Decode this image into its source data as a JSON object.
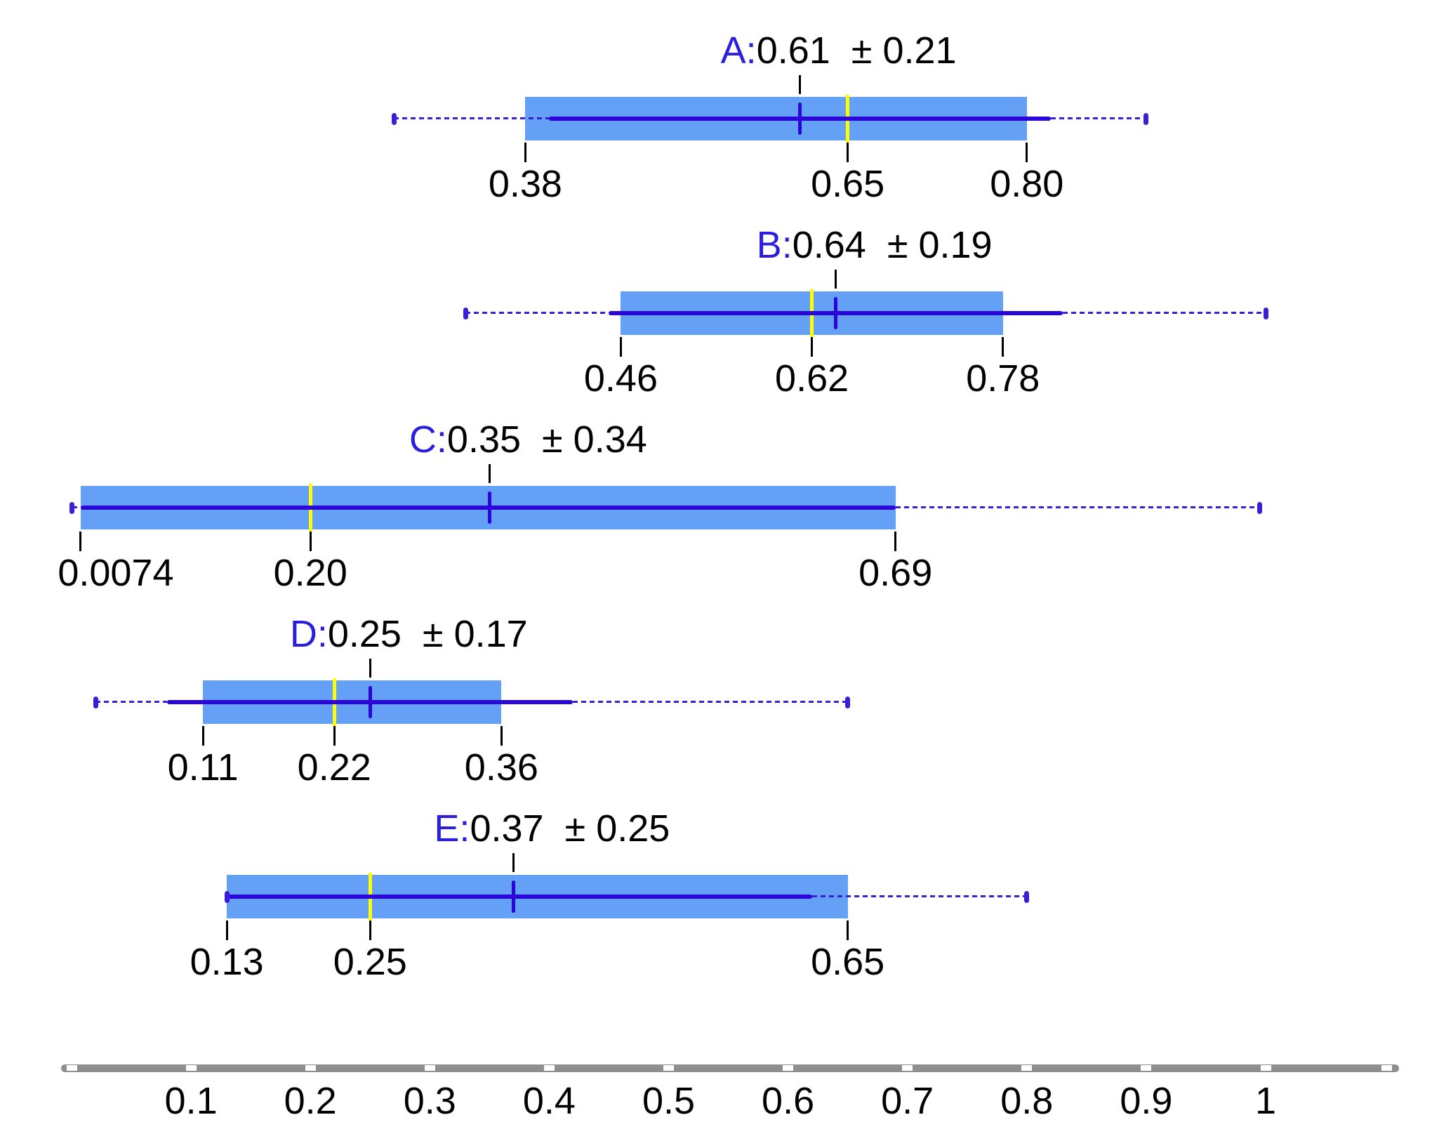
{
  "chart_data": {
    "type": "boxplot",
    "orientation": "horizontal",
    "title": "",
    "legend": null,
    "grid": false,
    "series": [
      {
        "name": "A",
        "label_prefix": "A:",
        "mean_label": "0.61",
        "pm_label": "± 0.21",
        "mean": 0.61,
        "std": 0.21,
        "median": 0.65,
        "box_low": 0.38,
        "box_high": 0.8,
        "solid_low": 0.4,
        "solid_high": 0.82,
        "whisker_low": 0.27,
        "whisker_high": 0.9,
        "value_labels": [
          {
            "text": "0.38",
            "v": 0.38
          },
          {
            "text": "0.65",
            "v": 0.65
          },
          {
            "text": "0.80",
            "v": 0.8
          }
        ]
      },
      {
        "name": "B",
        "label_prefix": "B:",
        "mean_label": "0.64",
        "pm_label": "± 0.19",
        "mean": 0.64,
        "std": 0.19,
        "median": 0.62,
        "box_low": 0.46,
        "box_high": 0.78,
        "solid_low": 0.45,
        "solid_high": 0.83,
        "whisker_low": 0.33,
        "whisker_high": 1.0,
        "value_labels": [
          {
            "text": "0.46",
            "v": 0.46
          },
          {
            "text": "0.62",
            "v": 0.62
          },
          {
            "text": "0.78",
            "v": 0.78
          }
        ]
      },
      {
        "name": "C",
        "label_prefix": "C:",
        "mean_label": "0.35",
        "pm_label": "± 0.34",
        "mean": 0.35,
        "std": 0.34,
        "median": 0.2,
        "box_low": 0.0074,
        "box_high": 0.69,
        "solid_low": 0.0074,
        "solid_high": 0.69,
        "whisker_low": 0.0005,
        "whisker_high": 0.995,
        "value_labels": [
          {
            "text": "0.0074",
            "v": 0.0074,
            "label_center_v": 0.037
          },
          {
            "text": "0.20",
            "v": 0.2
          },
          {
            "text": "0.69",
            "v": 0.69
          }
        ]
      },
      {
        "name": "D",
        "label_prefix": "D:",
        "mean_label": "0.25",
        "pm_label": "± 0.17",
        "mean": 0.25,
        "std": 0.17,
        "median": 0.22,
        "box_low": 0.11,
        "box_high": 0.36,
        "solid_low": 0.08,
        "solid_high": 0.42,
        "whisker_low": 0.02,
        "whisker_high": 0.65,
        "value_labels": [
          {
            "text": "0.11",
            "v": 0.11
          },
          {
            "text": "0.22",
            "v": 0.22
          },
          {
            "text": "0.36",
            "v": 0.36
          }
        ]
      },
      {
        "name": "E",
        "label_prefix": "E:",
        "mean_label": "0.37",
        "pm_label": "± 0.25",
        "mean": 0.37,
        "std": 0.25,
        "median": 0.25,
        "box_low": 0.13,
        "box_high": 0.65,
        "solid_low": 0.13,
        "solid_high": 0.62,
        "whisker_low": 0.13,
        "whisker_high": 0.8,
        "value_labels": [
          {
            "text": "0.13",
            "v": 0.13
          },
          {
            "text": "0.25",
            "v": 0.25
          },
          {
            "text": "0.65",
            "v": 0.65
          }
        ]
      }
    ],
    "x_axis": {
      "tick_values": [
        0.1,
        0.2,
        0.3,
        0.4,
        0.5,
        0.6,
        0.7,
        0.8,
        0.9,
        1.0
      ],
      "tick_labels": [
        "0.1",
        "0.2",
        "0.3",
        "0.4",
        "0.5",
        "0.6",
        "0.7",
        "0.8",
        "0.9",
        "1"
      ]
    },
    "colors": {
      "box_fill": "#64A1F6",
      "line_blue": "#2A06D8",
      "dash_blue": "#3A1FD9",
      "median_yellow": "#FFFF00",
      "axis_gray": "#8F8F8F",
      "series_label_blue": "#2A1EDF",
      "text": "#000000",
      "background": "#FFFFFF"
    }
  }
}
